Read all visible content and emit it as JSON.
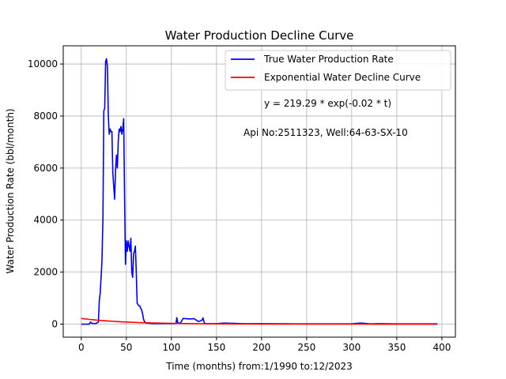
{
  "chart_data": {
    "type": "line",
    "title": "Water Production Decline Curve",
    "xlabel": "Time (months) from:1/1990 to:12/2023",
    "ylabel": "Water Production Rate (bbl/month)",
    "xlim": [
      -20,
      415
    ],
    "ylim": [
      -500,
      10700
    ],
    "xticks": [
      0,
      50,
      100,
      150,
      200,
      250,
      300,
      350,
      400
    ],
    "yticks": [
      0,
      2000,
      4000,
      6000,
      8000,
      10000
    ],
    "grid": true,
    "legend_position": "top-right",
    "annotations": [
      "y = 219.29 * exp(-0.02 * t)",
      "Api No:2511323, Well:64-63-SX-10"
    ],
    "series": [
      {
        "name": "True Water Production Rate",
        "color": "#0000ff",
        "points": [
          [
            0,
            0
          ],
          [
            9,
            0
          ],
          [
            10,
            80
          ],
          [
            12,
            30
          ],
          [
            16,
            20
          ],
          [
            19,
            80
          ],
          [
            20,
            900
          ],
          [
            21,
            1200
          ],
          [
            22,
            1800
          ],
          [
            23,
            2500
          ],
          [
            24,
            4000
          ],
          [
            25,
            8200
          ],
          [
            26,
            8300
          ],
          [
            27,
            10100
          ],
          [
            28,
            10200
          ],
          [
            29,
            9900
          ],
          [
            30,
            8000
          ],
          [
            31,
            7300
          ],
          [
            32,
            7500
          ],
          [
            33,
            7400
          ],
          [
            34,
            7400
          ],
          [
            35,
            5800
          ],
          [
            36,
            5300
          ],
          [
            37,
            4800
          ],
          [
            38,
            5900
          ],
          [
            39,
            6500
          ],
          [
            40,
            6000
          ],
          [
            41,
            7000
          ],
          [
            42,
            7500
          ],
          [
            43,
            7400
          ],
          [
            44,
            7600
          ],
          [
            45,
            7300
          ],
          [
            46,
            7500
          ],
          [
            47,
            7900
          ],
          [
            48,
            5000
          ],
          [
            49,
            2300
          ],
          [
            50,
            3200
          ],
          [
            51,
            2800
          ],
          [
            52,
            3200
          ],
          [
            53,
            3000
          ],
          [
            54,
            2800
          ],
          [
            55,
            3300
          ],
          [
            56,
            2000
          ],
          [
            57,
            1800
          ],
          [
            58,
            2700
          ],
          [
            59,
            2800
          ],
          [
            60,
            3000
          ],
          [
            61,
            2000
          ],
          [
            62,
            800
          ],
          [
            63,
            750
          ],
          [
            64,
            700
          ],
          [
            65,
            700
          ],
          [
            66,
            600
          ],
          [
            67,
            550
          ],
          [
            68,
            400
          ],
          [
            69,
            200
          ],
          [
            70,
            100
          ],
          [
            72,
            40
          ],
          [
            80,
            20
          ],
          [
            100,
            20
          ],
          [
            105,
            20
          ],
          [
            106,
            250
          ],
          [
            107,
            50
          ],
          [
            110,
            40
          ],
          [
            113,
            220
          ],
          [
            120,
            200
          ],
          [
            125,
            210
          ],
          [
            130,
            100
          ],
          [
            134,
            150
          ],
          [
            135,
            240
          ],
          [
            136,
            100
          ],
          [
            137,
            20
          ],
          [
            150,
            20
          ],
          [
            158,
            40
          ],
          [
            170,
            30
          ],
          [
            180,
            20
          ],
          [
            200,
            20
          ],
          [
            250,
            10
          ],
          [
            300,
            10
          ],
          [
            305,
            30
          ],
          [
            310,
            40
          ],
          [
            315,
            30
          ],
          [
            320,
            10
          ],
          [
            330,
            20
          ],
          [
            350,
            10
          ],
          [
            395,
            10
          ]
        ]
      },
      {
        "name": "Exponential Water Decline Curve",
        "color": "#ff0000",
        "equation": {
          "a": 219.29,
          "b": -0.02
        },
        "x_range": [
          0,
          395
        ]
      }
    ]
  }
}
